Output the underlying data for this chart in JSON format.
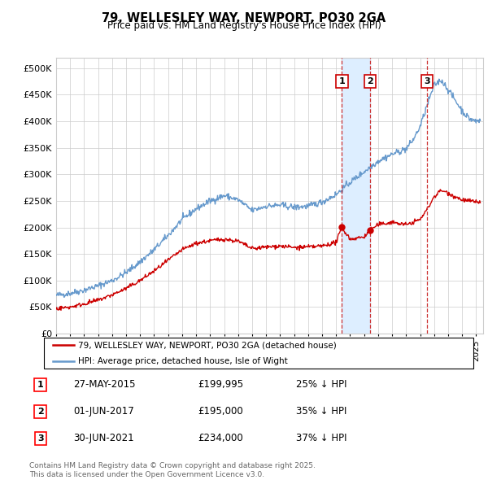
{
  "title": "79, WELLESLEY WAY, NEWPORT, PO30 2GA",
  "subtitle": "Price paid vs. HM Land Registry's House Price Index (HPI)",
  "ylim": [
    0,
    520000
  ],
  "yticks": [
    0,
    50000,
    100000,
    150000,
    200000,
    250000,
    300000,
    350000,
    400000,
    450000,
    500000
  ],
  "ytick_labels": [
    "£0",
    "£50K",
    "£100K",
    "£150K",
    "£200K",
    "£250K",
    "£300K",
    "£350K",
    "£400K",
    "£450K",
    "£500K"
  ],
  "xlim_start": 1995.0,
  "xlim_end": 2025.5,
  "sale_color": "#cc0000",
  "hpi_color": "#6699cc",
  "hpi_fill_color": "#ddeeff",
  "legend_sale_label": "79, WELLESLEY WAY, NEWPORT, PO30 2GA (detached house)",
  "legend_hpi_label": "HPI: Average price, detached house, Isle of Wight",
  "transactions": [
    {
      "num": 1,
      "date": "27-MAY-2015",
      "price": 199995,
      "pct": "25%",
      "x": 2015.41
    },
    {
      "num": 2,
      "date": "01-JUN-2017",
      "price": 195000,
      "pct": "35%",
      "x": 2017.42
    },
    {
      "num": 3,
      "date": "30-JUN-2021",
      "price": 234000,
      "pct": "37%",
      "x": 2021.5
    }
  ],
  "footer_line1": "Contains HM Land Registry data © Crown copyright and database right 2025.",
  "footer_line2": "This data is licensed under the Open Government Licence v3.0.",
  "hpi_anchors_x": [
    1995,
    1996,
    1997,
    1998,
    1999,
    2000,
    2001,
    2002,
    2003,
    2004,
    2005,
    2006,
    2007,
    2008,
    2009,
    2010,
    2011,
    2012,
    2013,
    2014,
    2015,
    2016,
    2017,
    2018,
    2019,
    2020,
    2020.5,
    2021,
    2021.5,
    2022,
    2022.5,
    2023,
    2023.5,
    2024,
    2024.5,
    2025,
    2025.3
  ],
  "hpi_anchors_y": [
    72000,
    76000,
    82000,
    90000,
    100000,
    115000,
    135000,
    158000,
    185000,
    215000,
    235000,
    250000,
    260000,
    252000,
    232000,
    240000,
    242000,
    238000,
    240000,
    248000,
    262000,
    285000,
    305000,
    325000,
    338000,
    348000,
    365000,
    390000,
    430000,
    468000,
    478000,
    460000,
    440000,
    420000,
    405000,
    400000,
    402000
  ],
  "sale_anchors_x": [
    1995,
    1996,
    1997,
    1998,
    1999,
    2000,
    2001,
    2002,
    2003,
    2004,
    2005,
    2006,
    2007,
    2008,
    2009,
    2010,
    2011,
    2012,
    2013,
    2014,
    2015,
    2015.41,
    2016,
    2017,
    2017.42,
    2018,
    2019,
    2020,
    2021,
    2021.5,
    2022,
    2022.5,
    2023,
    2023.5,
    2024,
    2024.5,
    2025,
    2025.3
  ],
  "sale_anchors_y": [
    47000,
    50000,
    56000,
    63000,
    73000,
    85000,
    100000,
    118000,
    138000,
    158000,
    170000,
    175000,
    178000,
    174000,
    160000,
    163000,
    165000,
    162000,
    163000,
    165000,
    172000,
    200000,
    178000,
    182000,
    195000,
    205000,
    210000,
    205000,
    215000,
    234000,
    258000,
    270000,
    265000,
    258000,
    252000,
    250000,
    248000,
    248000
  ]
}
